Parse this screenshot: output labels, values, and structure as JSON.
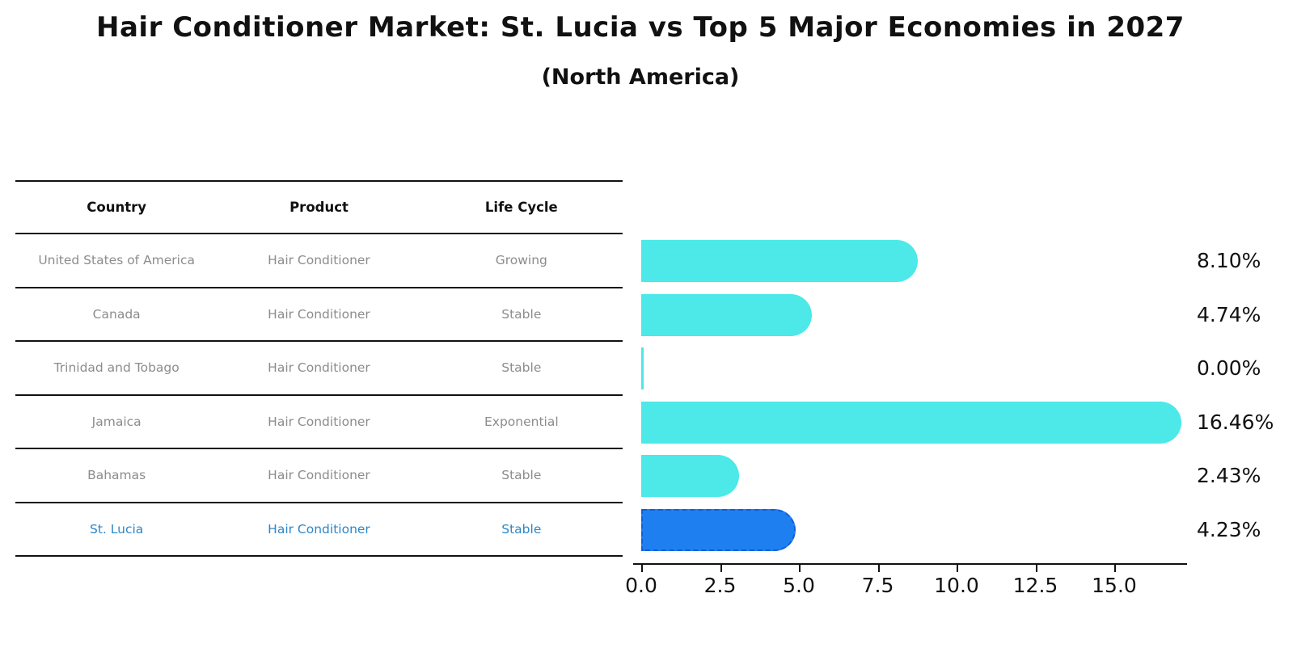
{
  "title": "Hair Conditioner Market: St. Lucia vs Top 5 Major Economies in 2027",
  "subtitle": "(North America)",
  "table": {
    "headers": {
      "country": "Country",
      "product": "Product",
      "life_cycle": "Life Cycle"
    },
    "rows": [
      {
        "country": "United States of America",
        "product": "Hair Conditioner",
        "life_cycle": "Growing",
        "highlight": false
      },
      {
        "country": "Canada",
        "product": "Hair Conditioner",
        "life_cycle": "Stable",
        "highlight": false
      },
      {
        "country": "Trinidad and Tobago",
        "product": "Hair Conditioner",
        "life_cycle": "Stable",
        "highlight": false
      },
      {
        "country": "Jamaica",
        "product": "Hair Conditioner",
        "life_cycle": "Exponential",
        "highlight": false
      },
      {
        "country": "Bahamas",
        "product": "Hair Conditioner",
        "life_cycle": "Stable",
        "highlight": false
      },
      {
        "country": "St. Lucia",
        "product": "Hair Conditioner",
        "life_cycle": "Stable",
        "highlight": true
      }
    ]
  },
  "chart_data": {
    "type": "bar",
    "orientation": "horizontal",
    "title": "Hair Conditioner Market: St. Lucia vs Top 5 Major Economies in 2027",
    "subtitle": "(North America)",
    "categories": [
      "United States of America",
      "Canada",
      "Trinidad and Tobago",
      "Jamaica",
      "Bahamas",
      "St. Lucia"
    ],
    "values": [
      8.1,
      4.74,
      0.0,
      16.46,
      2.43,
      4.23
    ],
    "value_labels": [
      "8.10%",
      "4.74%",
      "0.00%",
      "16.46%",
      "2.43%",
      "4.23%"
    ],
    "x_ticks": [
      0.0,
      2.5,
      5.0,
      7.5,
      10.0,
      12.5,
      15.0
    ],
    "x_tick_labels": [
      "0.0",
      "2.5",
      "5.0",
      "7.5",
      "10.0",
      "12.5",
      "15.0"
    ],
    "xlim": [
      0,
      17.3
    ],
    "grid": false,
    "legend": "none",
    "bar_color": "#4DE8E8",
    "highlight_color": "#1E80F0",
    "highlight_index": 5
  },
  "colors": {
    "bar": "#4DE8E8",
    "highlight_bar": "#1E80F0",
    "highlight_text": "#2E86C8",
    "row_text": "#8c8c8c",
    "header_text": "#111111",
    "label_text": "#111111"
  }
}
